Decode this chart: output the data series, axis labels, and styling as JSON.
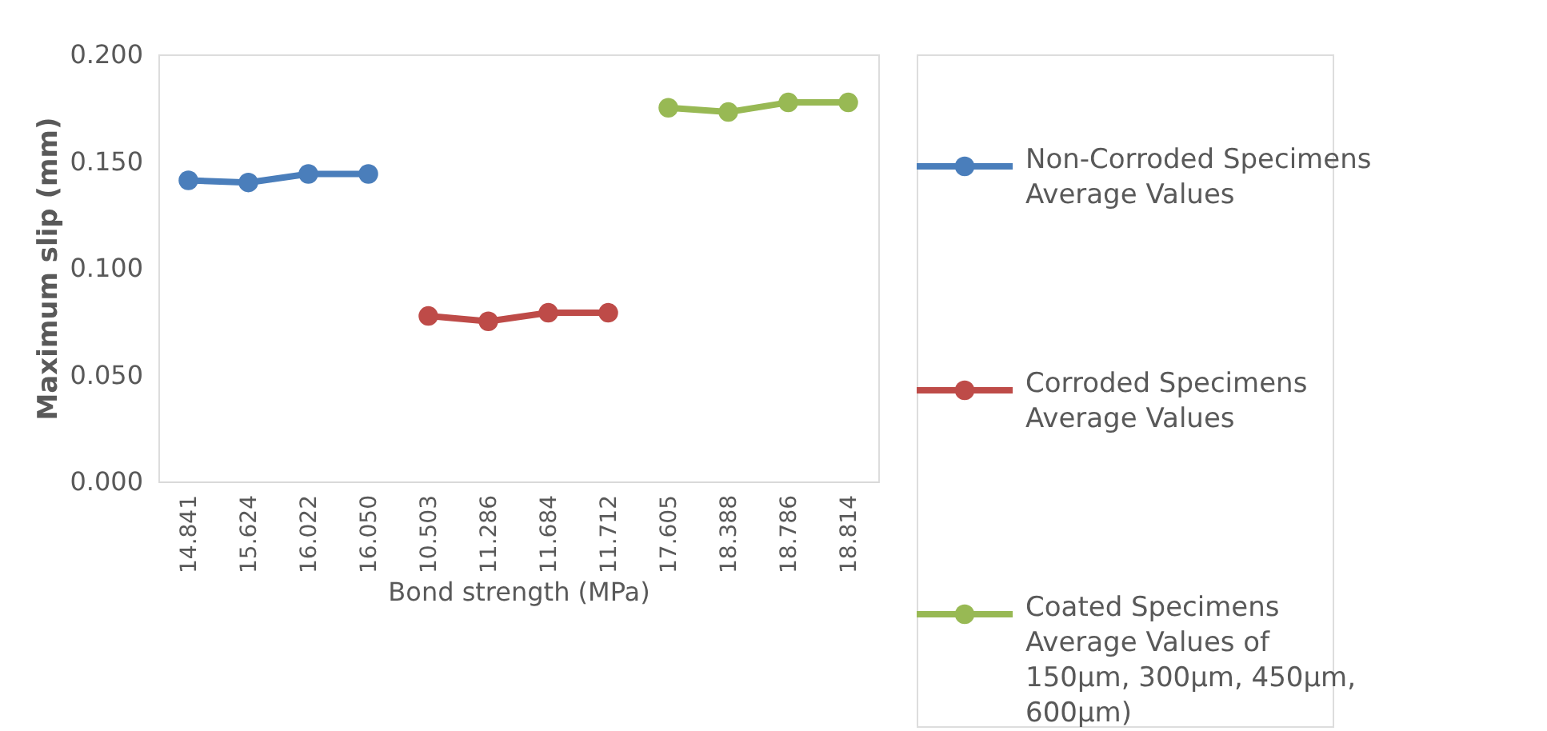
{
  "chart_data": {
    "type": "line",
    "xlabel": "Bond strength (MPa)",
    "ylabel": "Maximum slip (mm)",
    "categories": [
      "14.841",
      "15.624",
      "16.022",
      "16.050",
      "10.503",
      "11.286",
      "11.684",
      "11.712",
      "17.605",
      "18.388",
      "18.786",
      "18.814"
    ],
    "series": [
      {
        "name": "Non-Corroded Specimens Average Values",
        "color": "#4a7ebb",
        "values": [
          0.141,
          0.14,
          0.144,
          0.144,
          null,
          null,
          null,
          null,
          null,
          null,
          null,
          null
        ]
      },
      {
        "name": "Corroded Specimens Average Values",
        "color": "#be4b48",
        "values": [
          null,
          null,
          null,
          null,
          0.0775,
          0.075,
          0.079,
          0.079,
          null,
          null,
          null,
          null
        ]
      },
      {
        "name": "Coated Specimens Average Values of 150μm, 300μm, 450μm, 600μm)",
        "color": "#98b954",
        "values": [
          null,
          null,
          null,
          null,
          null,
          null,
          null,
          null,
          0.175,
          0.173,
          0.1775,
          0.1775
        ]
      }
    ],
    "ylim": [
      0,
      0.2
    ],
    "yticks": [
      {
        "value": 0,
        "label": "0.000"
      },
      {
        "value": 0.05,
        "label": "0.050"
      },
      {
        "value": 0.1,
        "label": "0.100"
      },
      {
        "value": 0.15,
        "label": "0.150"
      },
      {
        "value": 0.2,
        "label": "0.200"
      }
    ],
    "grid": false,
    "legend": "right",
    "marker": "circle",
    "line_style": "solid"
  }
}
